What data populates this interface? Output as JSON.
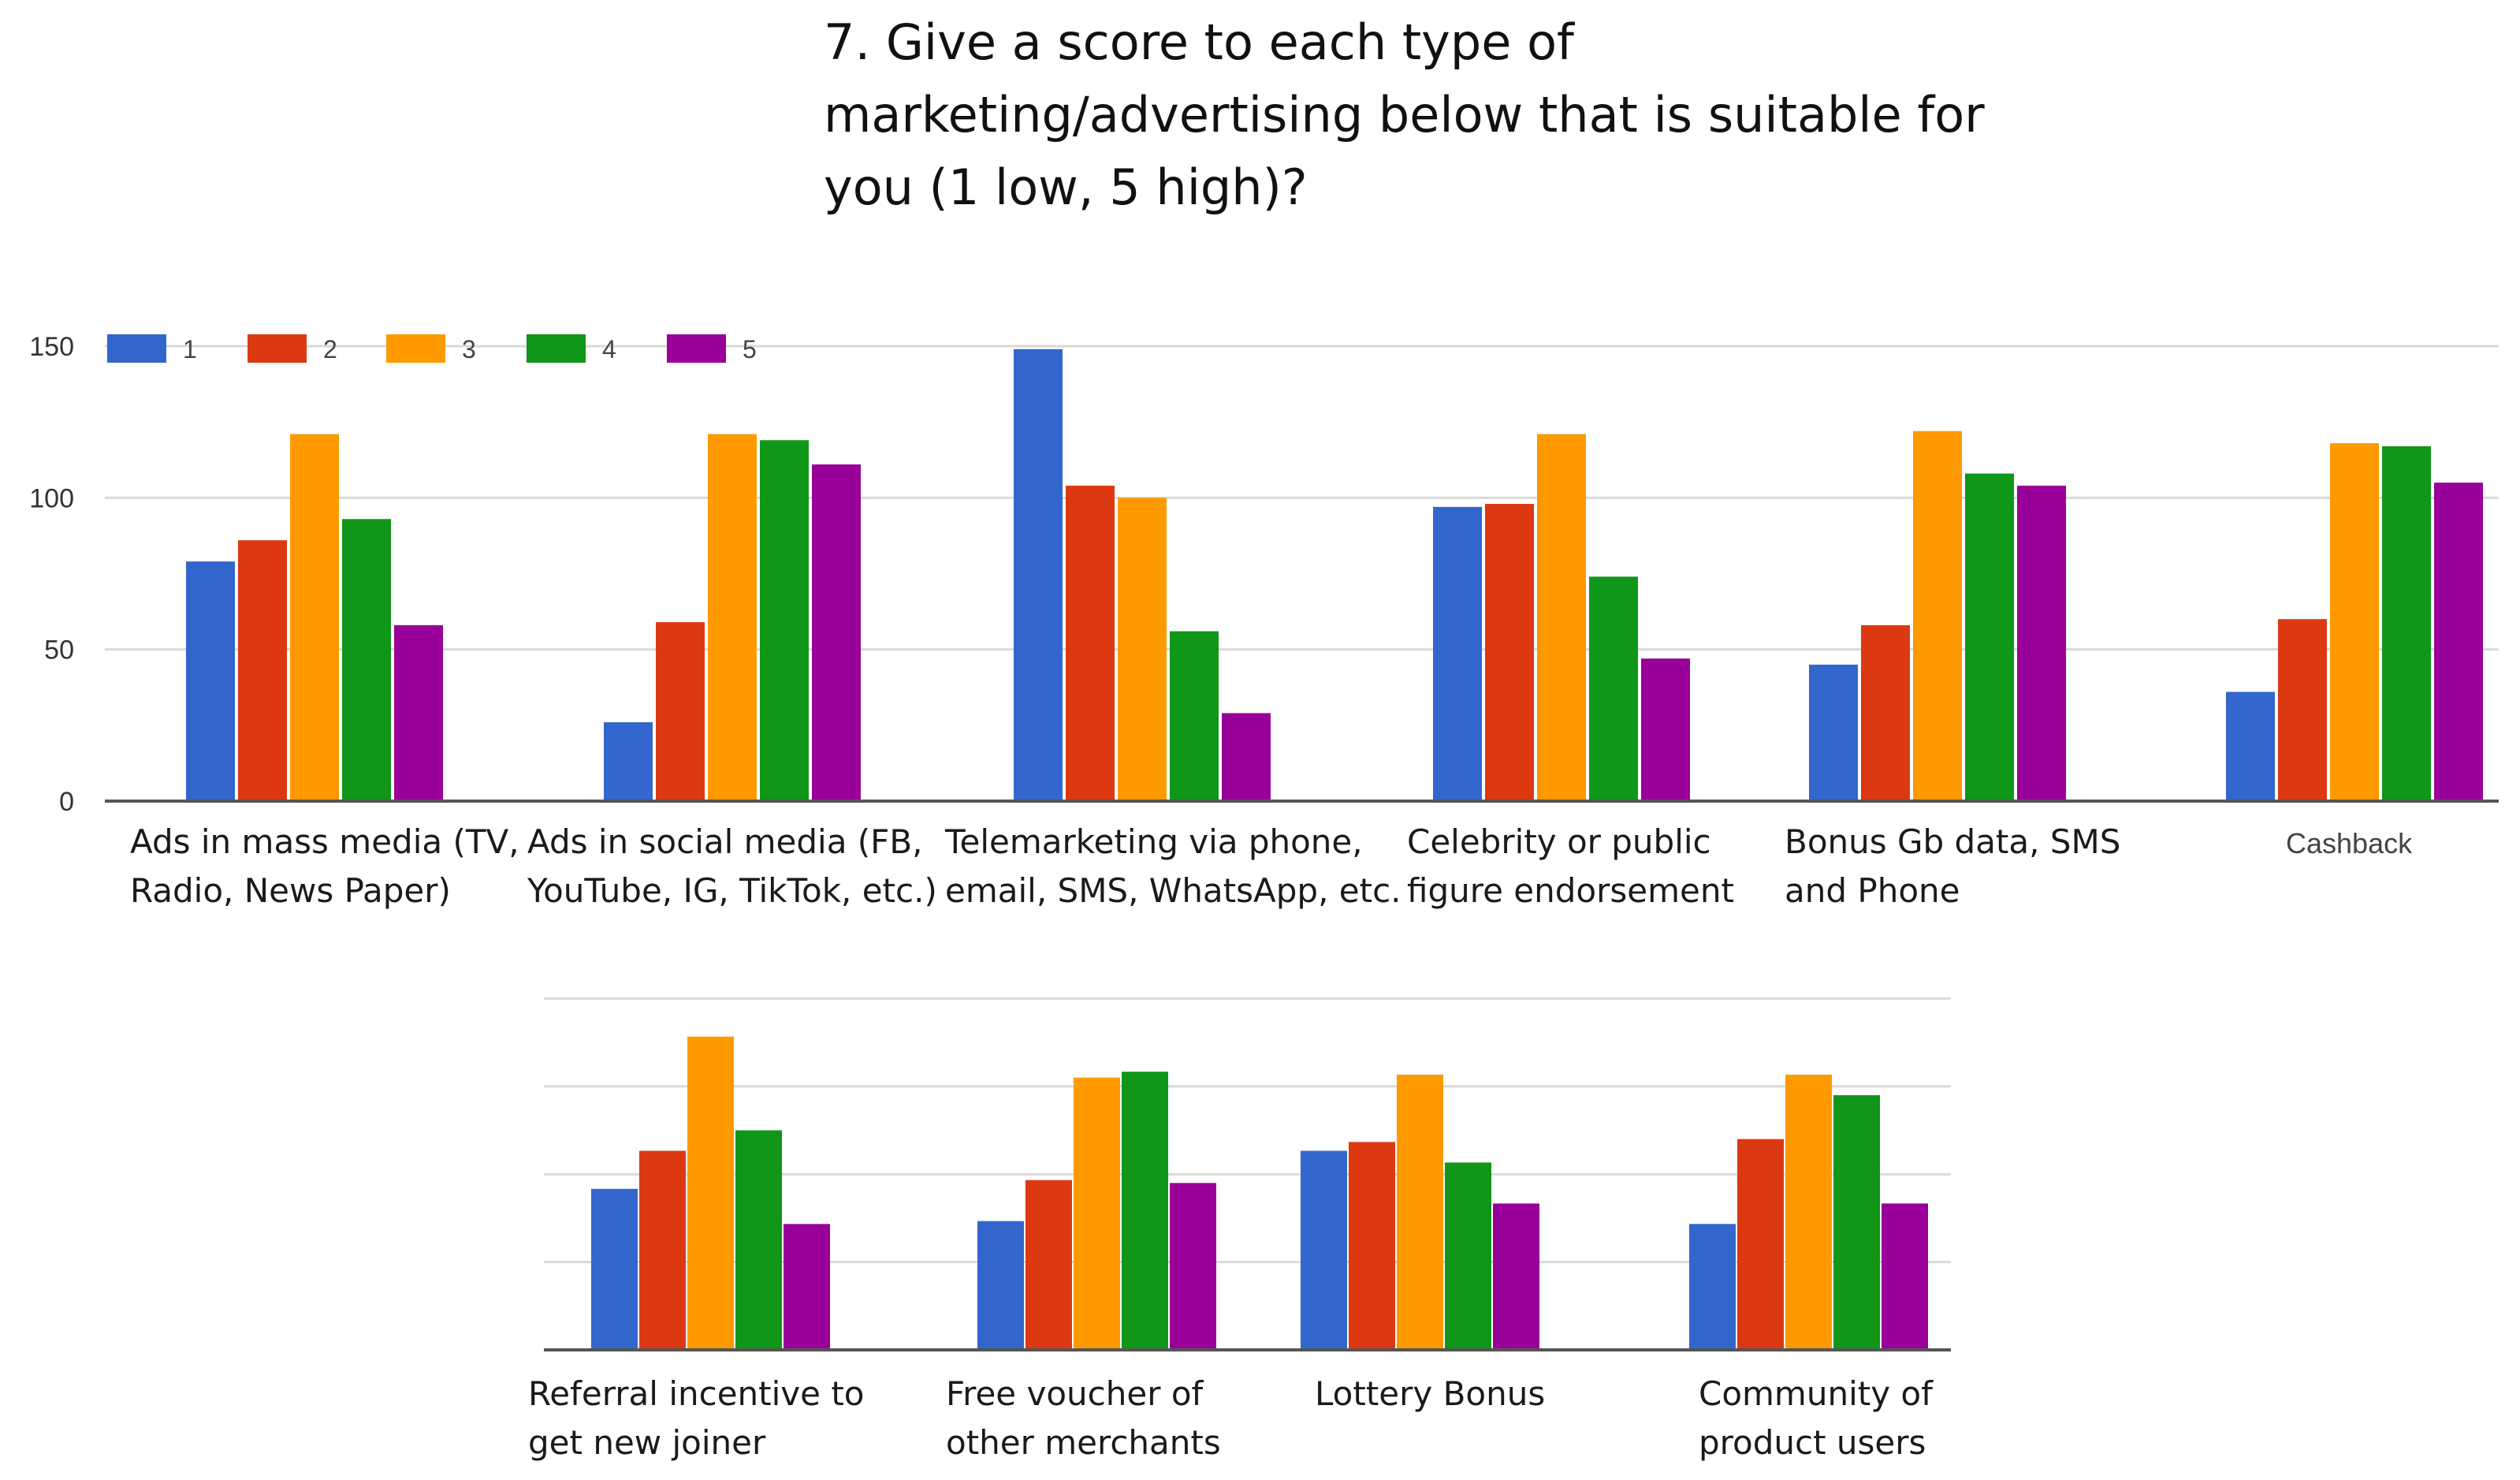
{
  "chart_data": {
    "type": "bar",
    "title_lines": [
      "7. Give a score to each type of",
      "marketing/advertising below that is suitable for",
      "you (1 low, 5 high)?"
    ],
    "legend": [
      {
        "name": "1",
        "color": "#3366cc"
      },
      {
        "name": "2",
        "color": "#dc3912"
      },
      {
        "name": "3",
        "color": "#ff9900"
      },
      {
        "name": "4",
        "color": "#109618"
      },
      {
        "name": "5",
        "color": "#990099"
      }
    ],
    "ylim": [
      0,
      150
    ],
    "yticks": [
      "0",
      "50",
      "100",
      "150"
    ],
    "top_panel": {
      "categories": [
        {
          "label": [
            "Ads in mass media (TV,",
            "Radio, News Paper)"
          ],
          "values": [
            79,
            86,
            121,
            93,
            58
          ]
        },
        {
          "label": [
            "Ads in social media (FB,",
            "YouTube, IG, TikTok, etc.)"
          ],
          "values": [
            26,
            59,
            121,
            119,
            111
          ]
        },
        {
          "label": [
            "Telemarketing via phone,",
            "email, SMS, WhatsApp, etc."
          ],
          "values": [
            149,
            104,
            100,
            56,
            29
          ]
        },
        {
          "label": [
            "Celebrity or public",
            "figure endorsement"
          ],
          "values": [
            97,
            98,
            121,
            74,
            47
          ]
        },
        {
          "label": [
            "Bonus Gb data, SMS",
            "and Phone"
          ],
          "values": [
            45,
            58,
            122,
            108,
            104
          ]
        },
        {
          "label": [
            "Cashback"
          ],
          "values": [
            36,
            60,
            118,
            117,
            105
          ]
        }
      ]
    },
    "bottom_panel": {
      "categories": [
        {
          "label": [
            "Referral incentive to",
            "get new joiner"
          ],
          "values": [
            55,
            68,
            107,
            75,
            43
          ]
        },
        {
          "label": [
            "Free voucher of",
            "other merchants"
          ],
          "values": [
            44,
            58,
            93,
            95,
            57
          ]
        },
        {
          "label": [
            "Lottery Bonus"
          ],
          "values": [
            68,
            71,
            94,
            64,
            50
          ]
        },
        {
          "label": [
            "Community of",
            "product users"
          ],
          "values": [
            43,
            72,
            94,
            87,
            50
          ]
        }
      ]
    }
  }
}
